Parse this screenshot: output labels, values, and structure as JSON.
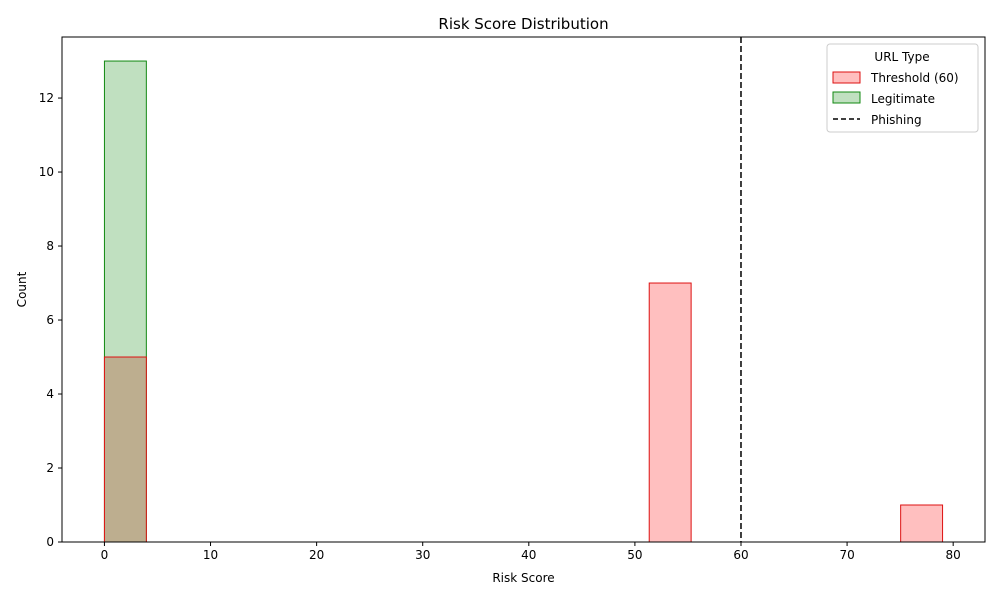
{
  "chart_data": {
    "type": "bar",
    "title": "Risk Score Distribution",
    "xlabel": "Risk Score",
    "ylabel": "Count",
    "xlim": [
      -4,
      83
    ],
    "ylim": [
      0,
      13.65
    ],
    "xticks": [
      0,
      10,
      20,
      30,
      40,
      50,
      60,
      70,
      80
    ],
    "yticks": [
      0,
      2,
      4,
      6,
      8,
      10,
      12
    ],
    "bin_start": 0,
    "bin_width": 3.95,
    "bin_count": 20,
    "legend": {
      "title": "URL Type",
      "placement": "top-right",
      "entries": [
        "Threshold (60)",
        "Legitimate",
        "Phishing"
      ]
    },
    "series": [
      {
        "name": "Threshold (60)",
        "fill": "#ffbfbf",
        "stroke": "#dd1111",
        "counts": [
          5,
          0,
          0,
          0,
          0,
          0,
          0,
          0,
          0,
          0,
          0,
          0,
          0,
          7,
          0,
          0,
          0,
          0,
          0,
          1
        ]
      },
      {
        "name": "Legitimate",
        "fill": "#c0e0c0",
        "stroke": "#118811",
        "counts": [
          13,
          0,
          0,
          0,
          0,
          0,
          0,
          0,
          0,
          0,
          0,
          0,
          0,
          0,
          0,
          0,
          0,
          0,
          0,
          0
        ]
      }
    ],
    "overlap_color": "#bdae8f",
    "reference_line": {
      "label": "Phishing",
      "x": 60,
      "color": "#000000",
      "style": "dashed"
    }
  }
}
